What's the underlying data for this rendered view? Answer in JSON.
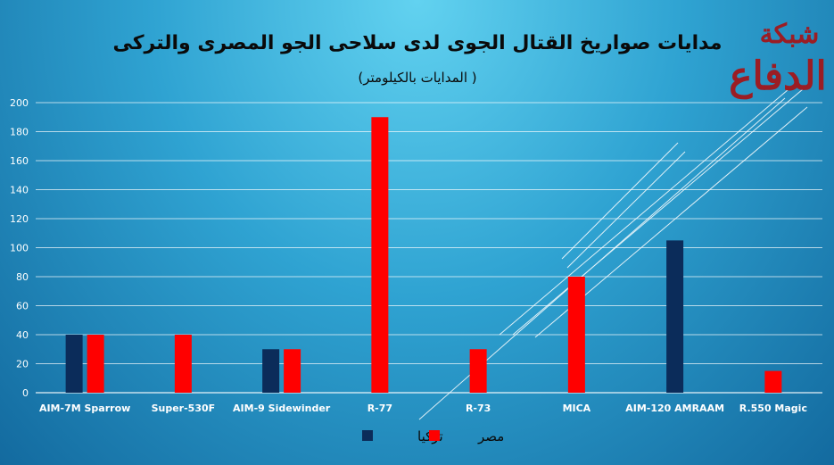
{
  "chart_data": {
    "type": "bar",
    "title": "مدايات صواريخ القتال الجوى لدى سلاحى الجو المصرى والتركى",
    "subtitle": "( المدايات بالكيلومتر)",
    "categories": [
      "AIM-7M Sparrow",
      "Super-530F",
      "AIM-9 Sidewinder",
      "R-77",
      "R-73",
      "MICA",
      "AIM-120 AMRAAM",
      "R.550 Magic"
    ],
    "series": [
      {
        "name": "تركيا",
        "color": "#0b2c5a",
        "values": [
          40,
          null,
          30,
          null,
          null,
          null,
          105,
          null
        ]
      },
      {
        "name": "مصر",
        "color": "#ff0000",
        "values": [
          40,
          40,
          30,
          190,
          30,
          80,
          null,
          15
        ]
      }
    ],
    "ylim": [
      0,
      200
    ],
    "yticks": [
      0,
      20,
      40,
      60,
      80,
      100,
      120,
      140,
      160,
      180,
      200
    ],
    "grid": true,
    "legend": "bottom"
  },
  "watermark": {
    "line1": "شبكة",
    "line2": "الدفاع",
    "color": "#9b1d24"
  }
}
